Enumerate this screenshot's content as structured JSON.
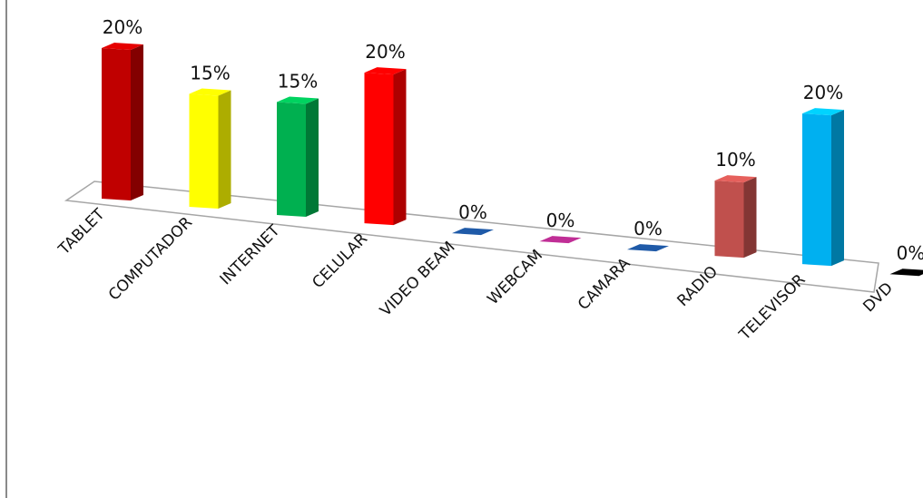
{
  "chart_data": {
    "type": "bar",
    "categories": [
      "TABLET",
      "COMPUTADOR",
      "INTERNET",
      "CELULAR",
      "VIDEO BEAM",
      "WEBCAM",
      "CAMARA",
      "RADIO",
      "TELEVISOR",
      "DVD"
    ],
    "values": [
      20,
      15,
      15,
      20,
      0,
      0,
      0,
      10,
      20,
      0
    ],
    "data_labels": [
      "20%",
      "15%",
      "15%",
      "20%",
      "0%",
      "0%",
      "0%",
      "10%",
      "20%",
      "0%"
    ],
    "unit": "%",
    "title": "",
    "xlabel": "",
    "ylabel": "",
    "ylim": [
      0,
      20
    ],
    "grid": false,
    "legend": "none",
    "style": "3d-column",
    "colors": [
      "#C00000",
      "#FFFF00",
      "#00B050",
      "#FF0000",
      "#1F5AA8",
      "#C02E96",
      "#1F5AA8",
      "#C0504D",
      "#00B0F0",
      "#000000"
    ]
  }
}
